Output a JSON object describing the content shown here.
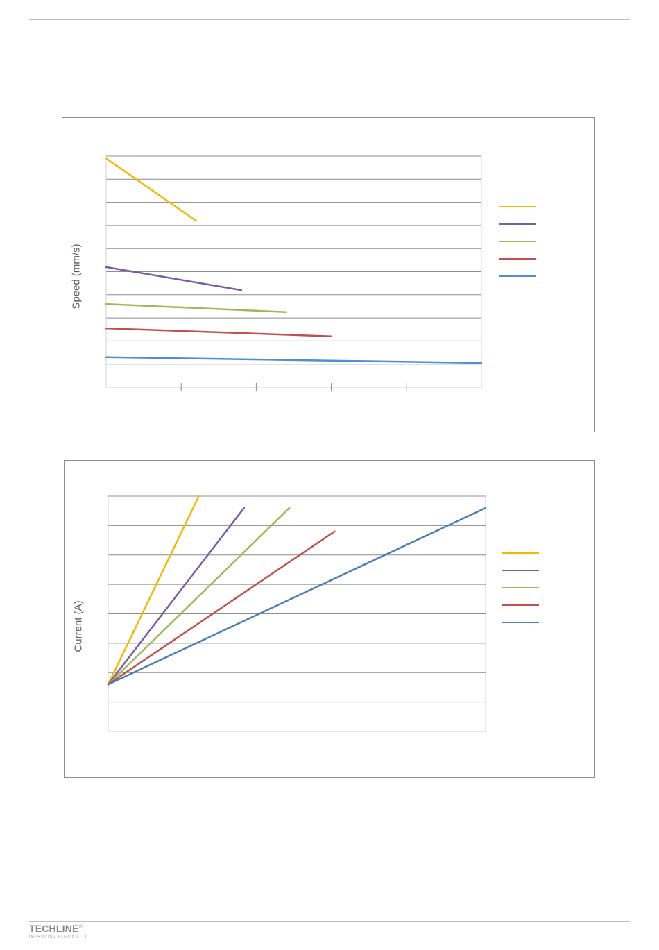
{
  "page": {
    "logo": {
      "wordmark": "TECHLINE",
      "registered": "®",
      "tagline": "IMPROVING FLEXIBILITY"
    }
  },
  "chart_data": [
    {
      "type": "line",
      "ylabel": "Speed (mm/s)",
      "xlabel": "",
      "xlim": [
        0,
        100
      ],
      "ylim": [
        0,
        10
      ],
      "grid": true,
      "legend_position": "right",
      "x_ticks": [
        20,
        40,
        60,
        80
      ],
      "series": [
        {
          "color": "#f5b800",
          "x": [
            0,
            24
          ],
          "y": [
            9.9,
            7.2
          ]
        },
        {
          "color": "#7b5aa6",
          "x": [
            0,
            36
          ],
          "y": [
            5.2,
            4.2
          ]
        },
        {
          "color": "#9bbb59",
          "x": [
            0,
            48
          ],
          "y": [
            3.6,
            3.25
          ]
        },
        {
          "color": "#c0504d",
          "x": [
            0,
            60
          ],
          "y": [
            2.55,
            2.2
          ]
        },
        {
          "color": "#4f8fd0",
          "x": [
            0,
            100
          ],
          "y": [
            1.3,
            1.05
          ]
        }
      ]
    },
    {
      "type": "line",
      "ylabel": "Current (A)",
      "xlabel": "",
      "xlim": [
        0,
        100
      ],
      "ylim": [
        0,
        8
      ],
      "grid": true,
      "legend_position": "right",
      "series": [
        {
          "color": "#f5b800",
          "x": [
            0,
            24
          ],
          "y": [
            1.6,
            8.0
          ]
        },
        {
          "color": "#7b5aa6",
          "x": [
            0,
            36
          ],
          "y": [
            1.6,
            7.6
          ]
        },
        {
          "color": "#9bbb59",
          "x": [
            0,
            48
          ],
          "y": [
            1.6,
            7.6
          ]
        },
        {
          "color": "#c0504d",
          "x": [
            0,
            60
          ],
          "y": [
            1.6,
            6.8
          ]
        },
        {
          "color": "#4a7ebb",
          "x": [
            0,
            100
          ],
          "y": [
            1.6,
            7.6
          ]
        }
      ]
    }
  ]
}
